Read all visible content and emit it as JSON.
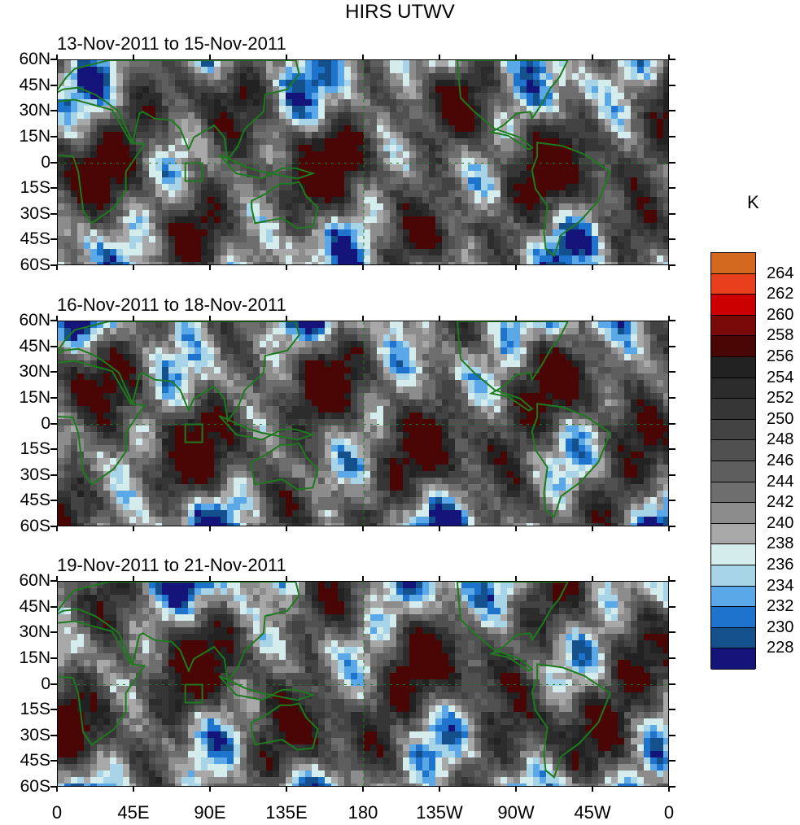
{
  "title": "HIRS UTWV",
  "unit": "K",
  "panels": [
    {
      "period": "13-Nov-2011 to 15-Nov-2011"
    },
    {
      "period": "16-Nov-2011 to 18-Nov-2011"
    },
    {
      "period": "19-Nov-2011 to 21-Nov-2011"
    }
  ],
  "lat_labels": [
    "60N",
    "45N",
    "30N",
    "15N",
    "0",
    "15S",
    "30S",
    "45S",
    "60S"
  ],
  "lon_labels": [
    "0",
    "45E",
    "90E",
    "135E",
    "180",
    "135W",
    "90W",
    "45W",
    "0"
  ],
  "colorbar": {
    "labels": [
      "264",
      "262",
      "260",
      "258",
      "256",
      "254",
      "252",
      "250",
      "248",
      "246",
      "244",
      "242",
      "240",
      "238",
      "236",
      "234",
      "232",
      "230",
      "228"
    ],
    "colors": [
      "#d2691e",
      "#e8401c",
      "#cc0000",
      "#7a0a0a",
      "#4a0505",
      "#222222",
      "#2c2c2c",
      "#363636",
      "#434343",
      "#505050",
      "#5e5e5e",
      "#6e6e6e",
      "#8c8c8c",
      "#a8a8a8",
      "#d4ecec",
      "#a8d4e8",
      "#5aa8e8",
      "#1e74cc",
      "#14508c",
      "#14147a"
    ]
  },
  "map_colors": {
    "coastline": "#1e7a1e",
    "dateline": "#1e7a1e"
  }
}
